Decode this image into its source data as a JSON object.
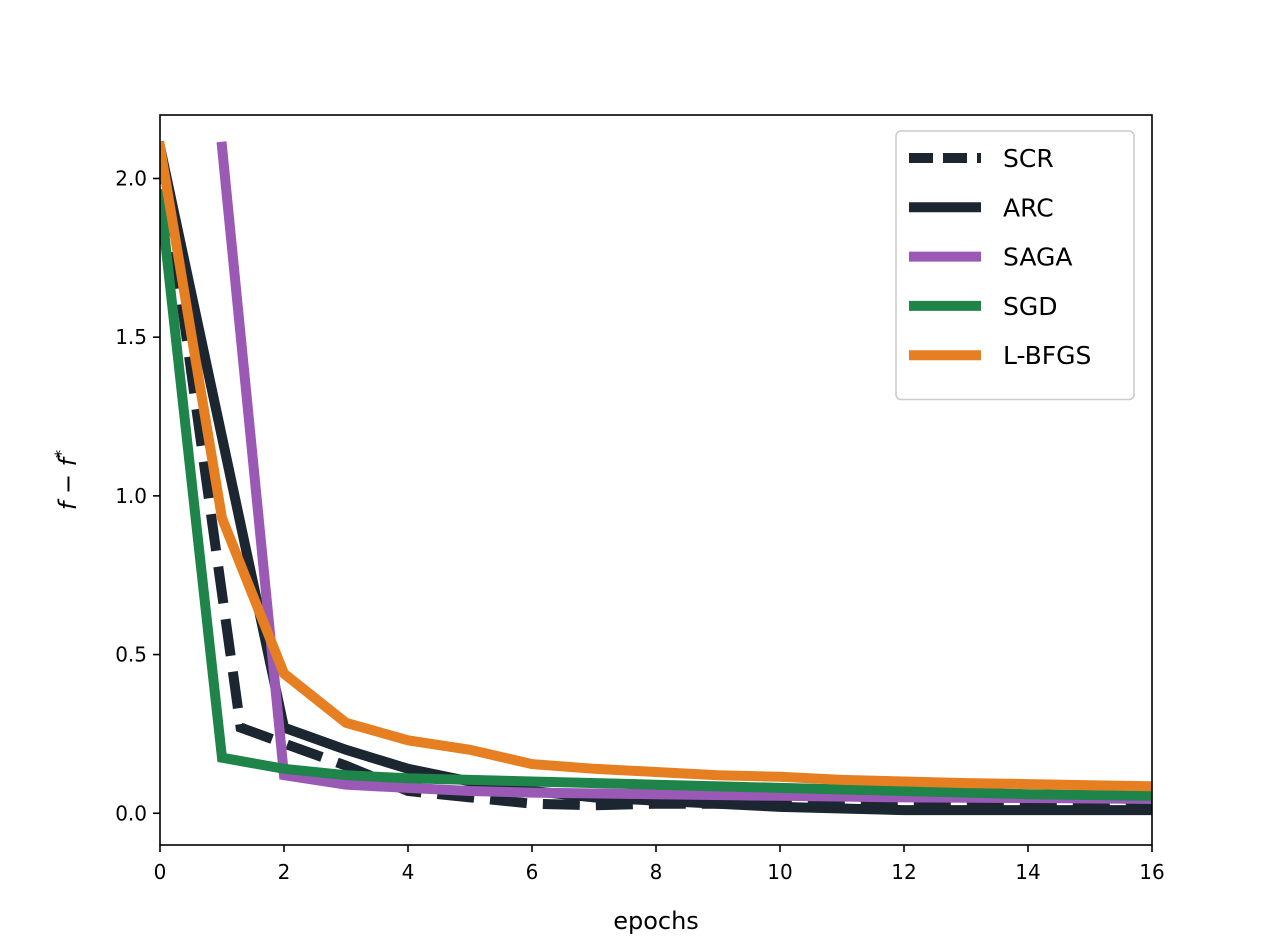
{
  "chart_data": {
    "type": "line",
    "title": "",
    "xlabel": "epochs",
    "ylabel": "f − f*",
    "xlim": [
      0,
      16
    ],
    "ylim": [
      -0.1,
      2.2
    ],
    "xticks": [
      0,
      2,
      4,
      6,
      8,
      10,
      12,
      14,
      16
    ],
    "xtick_labels": [
      "0",
      "2",
      "4",
      "6",
      "8",
      "10",
      "12",
      "14",
      "16"
    ],
    "yticks": [
      0.0,
      0.5,
      1.0,
      1.5,
      2.0
    ],
    "ytick_labels": [
      "0.0",
      "0.5",
      "1.0",
      "1.5",
      "2.0"
    ],
    "grid": false,
    "legend_position": "top-right",
    "series": [
      {
        "name": "SCR",
        "color": "#1b2631",
        "dash": true,
        "x": [
          0,
          1.3,
          2,
          3,
          4,
          5,
          6,
          7,
          8,
          10,
          12,
          14,
          16
        ],
        "y": [
          2.1,
          0.27,
          0.22,
          0.15,
          0.07,
          0.05,
          0.03,
          0.025,
          0.03,
          0.03,
          0.03,
          0.03,
          0.03
        ]
      },
      {
        "name": "ARC",
        "color": "#1b2631",
        "dash": false,
        "x": [
          0,
          2,
          3,
          4,
          5,
          6,
          7,
          8,
          10,
          12,
          14,
          16
        ],
        "y": [
          2.1,
          0.27,
          0.2,
          0.14,
          0.1,
          0.07,
          0.05,
          0.04,
          0.02,
          0.01,
          0.01,
          0.01
        ]
      },
      {
        "name": "SAGA",
        "color": "#9b59b6",
        "dash": false,
        "x": [
          1,
          2,
          3,
          4,
          5,
          6,
          8,
          10,
          12,
          14,
          16
        ],
        "y": [
          2.1,
          0.12,
          0.09,
          0.08,
          0.07,
          0.065,
          0.06,
          0.055,
          0.05,
          0.048,
          0.045
        ]
      },
      {
        "name": "SGD",
        "color": "#1e8449",
        "dash": false,
        "x": [
          0,
          1,
          2,
          3,
          4,
          5,
          6,
          8,
          10,
          12,
          14,
          16
        ],
        "y": [
          1.95,
          0.175,
          0.14,
          0.12,
          0.11,
          0.105,
          0.1,
          0.09,
          0.08,
          0.07,
          0.06,
          0.055
        ]
      },
      {
        "name": "L-BFGS",
        "color": "#e67e22",
        "dash": false,
        "x": [
          0,
          1,
          2,
          3,
          4,
          5,
          6,
          7,
          8,
          9,
          10,
          11,
          12,
          13,
          14,
          15,
          16
        ],
        "y": [
          2.1,
          0.93,
          0.44,
          0.285,
          0.23,
          0.2,
          0.155,
          0.14,
          0.13,
          0.12,
          0.115,
          0.105,
          0.1,
          0.095,
          0.092,
          0.088,
          0.085
        ]
      }
    ]
  }
}
